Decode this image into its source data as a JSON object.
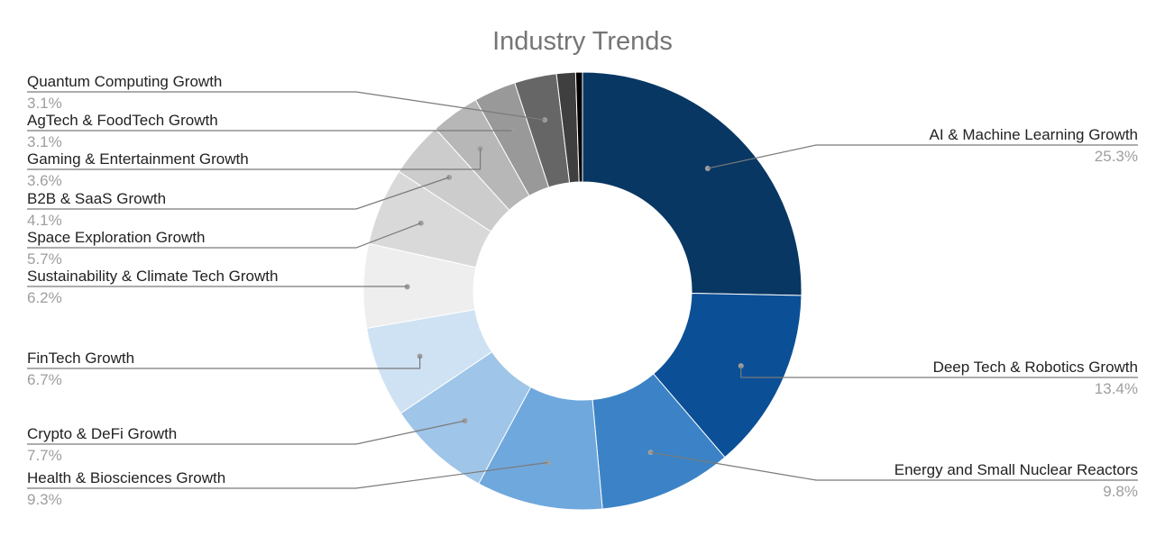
{
  "chart_data": {
    "type": "pie",
    "donut": true,
    "title": "Industry Trends",
    "legend": "none",
    "slices": [
      {
        "label": "AI & Machine Learning Growth",
        "value": 25.3,
        "value_label": "25.3%",
        "color": "#083763"
      },
      {
        "label": "Deep Tech & Robotics Growth",
        "value": 13.4,
        "value_label": "13.4%",
        "color": "#0b4f96"
      },
      {
        "label": "Energy and Small Nuclear Reactors",
        "value": 9.8,
        "value_label": "9.8%",
        "color": "#3b83c6"
      },
      {
        "label": "Health & Biosciences Growth",
        "value": 9.3,
        "value_label": "9.3%",
        "color": "#6fa8dc"
      },
      {
        "label": "Crypto & DeFi Growth",
        "value": 7.7,
        "value_label": "7.7%",
        "color": "#9fc5e8"
      },
      {
        "label": "FinTech Growth",
        "value": 6.7,
        "value_label": "6.7%",
        "color": "#cfe2f3"
      },
      {
        "label": "Sustainability & Climate Tech Growth",
        "value": 6.2,
        "value_label": "6.2%",
        "color": "#eeeeee"
      },
      {
        "label": "Space Exploration Growth",
        "value": 5.7,
        "value_label": "5.7%",
        "color": "#d9d9d9"
      },
      {
        "label": "B2B & SaaS Growth",
        "value": 4.1,
        "value_label": "4.1%",
        "color": "#cccccc"
      },
      {
        "label": "Gaming & Entertainment Growth",
        "value": 3.6,
        "value_label": "3.6%",
        "color": "#b7b7b7"
      },
      {
        "label": "AgTech & FoodTech Growth",
        "value": 3.1,
        "value_label": "3.1%",
        "color": "#999999"
      },
      {
        "label": "Quantum Computing Growth",
        "value": 3.1,
        "value_label": "3.1%",
        "color": "#666666"
      },
      {
        "label": "",
        "value": 1.4,
        "value_label": "",
        "color": "#3f3f3f"
      },
      {
        "label": "",
        "value": 0.5,
        "value_label": "",
        "color": "#000000"
      }
    ]
  }
}
